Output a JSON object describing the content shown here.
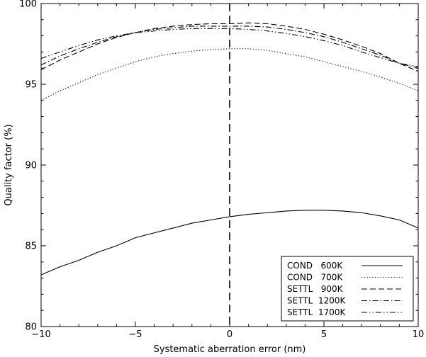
{
  "chart_data": {
    "type": "line",
    "title": "",
    "xlabel": "Systematic aberration error (nm)",
    "ylabel": "Quality factor (%)",
    "xlim": [
      -10,
      10
    ],
    "ylim": [
      80,
      100
    ],
    "x_ticks": [
      -10,
      -5,
      0,
      5,
      10
    ],
    "y_ticks": [
      80,
      85,
      90,
      95,
      100
    ],
    "x_tick_labels": [
      "−10",
      "−5",
      "0",
      "5",
      "10"
    ],
    "y_tick_labels": [
      "80",
      "85",
      "90",
      "95",
      "100"
    ],
    "grid": false,
    "legend_position": "bottom-right",
    "vertical_reference_line_x": 0,
    "x": [
      -10,
      -9,
      -8,
      -7,
      -6,
      -5,
      -4,
      -3,
      -2,
      -1,
      0,
      1,
      2,
      3,
      4,
      5,
      6,
      7,
      8,
      9,
      10
    ],
    "series": [
      {
        "name": "COND   600K",
        "dash": "solid",
        "values": [
          83.2,
          83.7,
          84.1,
          84.6,
          85.0,
          85.5,
          85.8,
          86.1,
          86.4,
          86.6,
          86.8,
          86.95,
          87.05,
          87.15,
          87.2,
          87.2,
          87.15,
          87.05,
          86.85,
          86.6,
          86.1
        ]
      },
      {
        "name": "COND   700K",
        "dash": "dotted",
        "values": [
          94.0,
          94.6,
          95.1,
          95.6,
          96.0,
          96.4,
          96.7,
          96.9,
          97.05,
          97.15,
          97.2,
          97.2,
          97.1,
          96.9,
          96.7,
          96.4,
          96.1,
          95.8,
          95.45,
          95.05,
          94.6
        ]
      },
      {
        "name": "SETTL   900K",
        "dash": "dashed",
        "values": [
          95.9,
          96.5,
          97.0,
          97.5,
          97.9,
          98.2,
          98.45,
          98.6,
          98.7,
          98.75,
          98.75,
          98.8,
          98.75,
          98.6,
          98.4,
          98.1,
          97.75,
          97.35,
          96.9,
          96.3,
          95.8
        ]
      },
      {
        "name": "SETTL  1200K",
        "dash": "dashdot",
        "values": [
          96.2,
          96.75,
          97.2,
          97.6,
          97.95,
          98.2,
          98.4,
          98.5,
          98.6,
          98.6,
          98.6,
          98.6,
          98.55,
          98.4,
          98.2,
          97.95,
          97.6,
          97.2,
          96.8,
          96.3,
          96.0
        ]
      },
      {
        "name": "SETTL  1700K",
        "dash": "dashdotdot",
        "values": [
          96.6,
          97.0,
          97.4,
          97.75,
          98.0,
          98.2,
          98.3,
          98.4,
          98.45,
          98.45,
          98.45,
          98.4,
          98.3,
          98.15,
          97.95,
          97.7,
          97.4,
          97.0,
          96.65,
          96.3,
          96.1
        ]
      }
    ]
  }
}
